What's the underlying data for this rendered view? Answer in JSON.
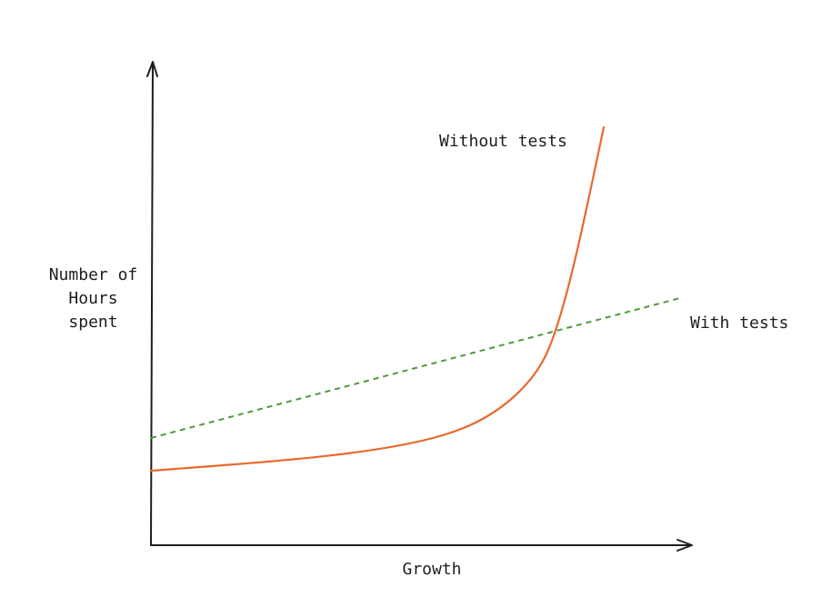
{
  "diagram": {
    "ylabel_lines": [
      "Number of",
      "Hours",
      "spent"
    ],
    "xlabel": "Growth",
    "series": [
      {
        "name": "Without tests",
        "color": "#e8692e",
        "style": "solid",
        "shape": "exponential"
      },
      {
        "name": "With tests",
        "color": "#4c9a3c",
        "style": "dashed",
        "shape": "linear"
      }
    ],
    "axis_color": "#1e1e1e"
  }
}
